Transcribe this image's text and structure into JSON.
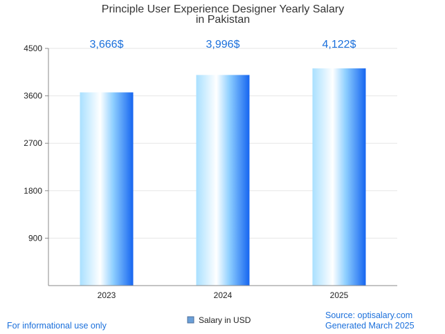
{
  "chart_data": {
    "type": "bar",
    "title_lines": [
      "Principle User Experience Designer Yearly Salary",
      "in Pakistan"
    ],
    "categories": [
      "2023",
      "2024",
      "2025"
    ],
    "values": [
      3666,
      3996,
      4122
    ],
    "value_labels": [
      "3,666$",
      "3,996$",
      "4,122$"
    ],
    "series_name": "Salary in USD",
    "yticks": [
      900,
      1800,
      2700,
      3600,
      4500
    ],
    "ylim": [
      0,
      4500
    ],
    "grid": true,
    "legend": "bottom-center"
  },
  "footer": {
    "disclaimer": "For informational use only",
    "source": "Source: optisalary.com",
    "generated": "Generated March 2025"
  },
  "colors": {
    "bar_light": "#a9e0ff",
    "bar_white": "#ffffff",
    "bar_dark": "#1665f0",
    "label_blue": "#1a6fdb",
    "grid": "#e6e6e6",
    "axis": "#888888"
  }
}
